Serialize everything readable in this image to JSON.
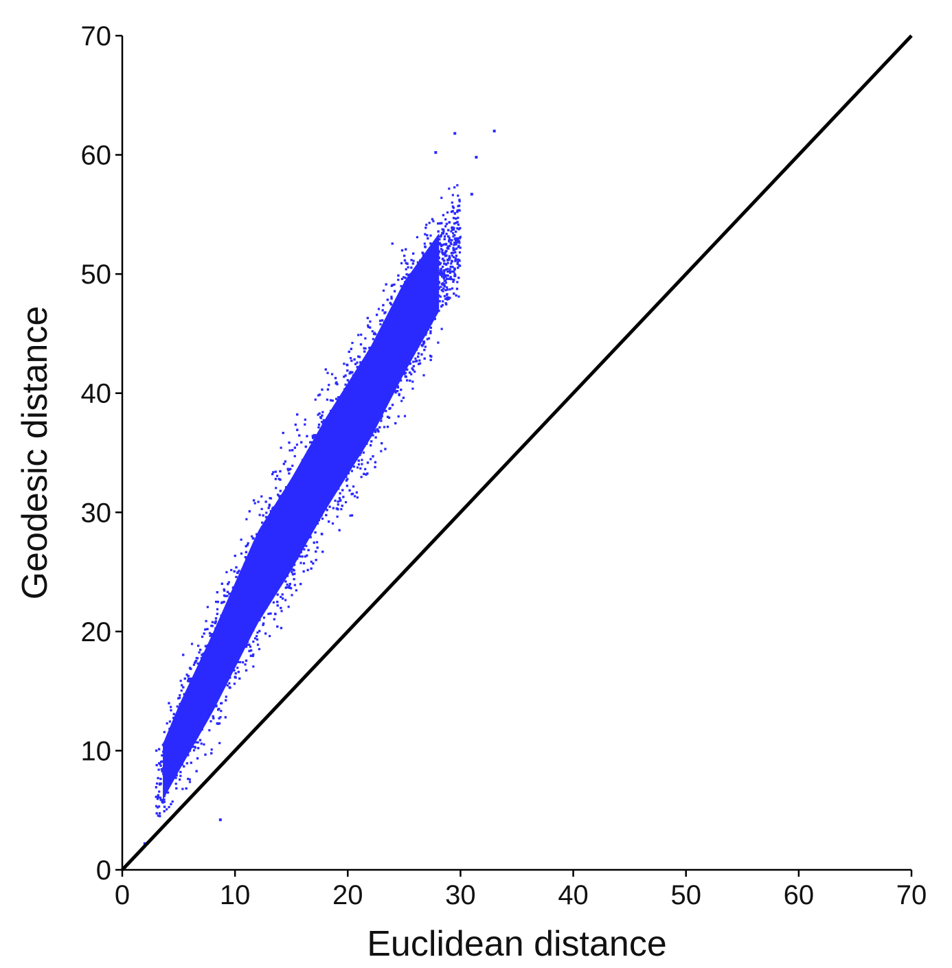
{
  "chart_data": {
    "type": "scatter",
    "title": "",
    "xlabel": "Euclidean distance",
    "ylabel": "Geodesic distance",
    "xlim": [
      0,
      70
    ],
    "ylim": [
      0,
      70
    ],
    "xticks": [
      "0",
      "10",
      "20",
      "30",
      "40",
      "50",
      "60",
      "70"
    ],
    "yticks": [
      "0",
      "10",
      "20",
      "30",
      "40",
      "50",
      "60",
      "70"
    ],
    "grid": false,
    "legend": "none",
    "reference_line": {
      "type": "identity",
      "from": [
        0,
        0
      ],
      "to": [
        70,
        70
      ],
      "color": "#000000"
    },
    "point_color": "#2a2aff",
    "series": [
      {
        "point_cloud_trend": {
          "x": [
            3,
            5,
            8,
            10,
            12,
            15,
            18,
            20,
            22,
            25,
            28,
            30
          ],
          "y_center": [
            7,
            11,
            16.5,
            20.5,
            24.5,
            29,
            34,
            37,
            40,
            45.5,
            50,
            53
          ],
          "y_spread": [
            4,
            5,
            6,
            6.5,
            7,
            7,
            7,
            7,
            7,
            7,
            6,
            5
          ]
        },
        "outliers": [
          {
            "x": 33,
            "y": 62
          },
          {
            "x": 29.5,
            "y": 61.8
          },
          {
            "x": 27.8,
            "y": 60.2
          },
          {
            "x": 31.4,
            "y": 59.8
          },
          {
            "x": 31.0,
            "y": 56.7
          },
          {
            "x": 8.7,
            "y": 4.2
          },
          {
            "x": 2.0,
            "y": 2.2
          }
        ]
      }
    ]
  }
}
